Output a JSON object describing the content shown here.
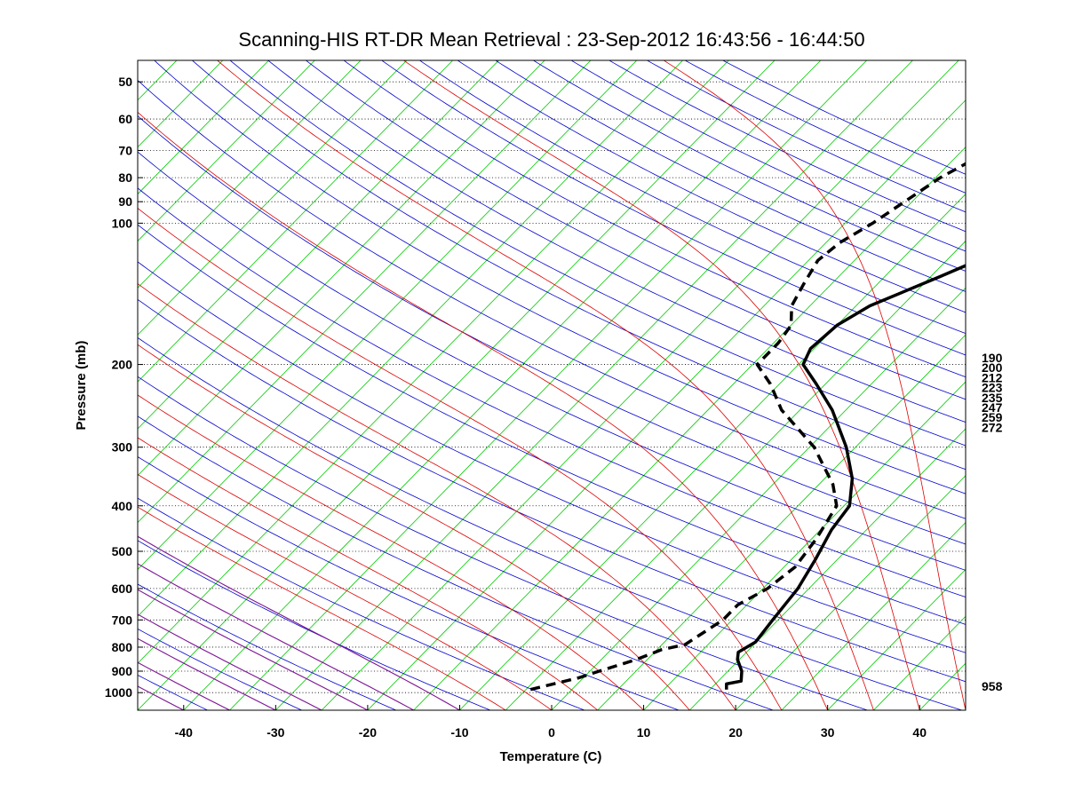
{
  "chart_data": {
    "type": "line",
    "subtype": "skew-T log-P diagram",
    "title": "Scanning-HIS RT-DR Mean Retrieval : 23-Sep-2012 16:43:56 - 16:44:50",
    "xlabel": "Temperature (C)",
    "ylabel": "Pressure (mb)",
    "xlim": [
      -45,
      45
    ],
    "ylim": [
      1090,
      45
    ],
    "x_ticks": [
      -40,
      -30,
      -20,
      -10,
      0,
      10,
      20,
      30,
      40
    ],
    "y_ticks": [
      50,
      60,
      70,
      80,
      90,
      100,
      200,
      300,
      400,
      500,
      600,
      700,
      800,
      900,
      1000
    ],
    "right_labels": [
      "190",
      "200",
      "212",
      "223",
      "235",
      "247",
      "259",
      "272"
    ],
    "surface_label": "958",
    "grid": "dotted horizontal isobars",
    "colors": {
      "isotherm": "#00cc00",
      "dry_adiabat": "#0000cc",
      "moist_adiabat": "#dd0000",
      "purple": "#7d1d9d",
      "profile": "#000000"
    },
    "series": [
      {
        "name": "temperature",
        "style": "solid",
        "points": [
          [
            985,
            16.8
          ],
          [
            958,
            16.2
          ],
          [
            945,
            17.5
          ],
          [
            900,
            16.5
          ],
          [
            850,
            14.8
          ],
          [
            820,
            14.1
          ],
          [
            780,
            14.9
          ],
          [
            700,
            14.4
          ],
          [
            600,
            13.8
          ],
          [
            520,
            12.6
          ],
          [
            450,
            11.2
          ],
          [
            400,
            10.6
          ],
          [
            350,
            8.0
          ],
          [
            300,
            4.0
          ],
          [
            250,
            -1.5
          ],
          [
            220,
            -6.0
          ],
          [
            200,
            -9.5
          ],
          [
            185,
            -10.4
          ],
          [
            165,
            -10.0
          ],
          [
            150,
            -8.5
          ],
          [
            130,
            -4.0
          ],
          [
            110,
            1.0
          ],
          [
            100,
            3.5
          ],
          [
            85,
            8.0
          ],
          [
            75,
            11.5
          ],
          [
            65,
            16.5
          ],
          [
            55,
            21.0
          ],
          [
            48,
            24.5
          ]
        ]
      },
      {
        "name": "dewpoint",
        "style": "dashed",
        "points": [
          [
            985,
            -4.5
          ],
          [
            930,
            -0.5
          ],
          [
            900,
            1.0
          ],
          [
            850,
            3.8
          ],
          [
            810,
            5.5
          ],
          [
            790,
            7.5
          ],
          [
            740,
            8.3
          ],
          [
            700,
            9.0
          ],
          [
            650,
            9.0
          ],
          [
            600,
            10.5
          ],
          [
            540,
            11.2
          ],
          [
            470,
            10.5
          ],
          [
            400,
            9.2
          ],
          [
            360,
            6.5
          ],
          [
            300,
            0.5
          ],
          [
            250,
            -7.0
          ],
          [
            220,
            -11.0
          ],
          [
            200,
            -14.5
          ],
          [
            180,
            -14.5
          ],
          [
            165,
            -15.0
          ],
          [
            150,
            -17.0
          ],
          [
            135,
            -18.0
          ],
          [
            120,
            -19.0
          ],
          [
            110,
            -18.5
          ],
          [
            100,
            -17.0
          ],
          [
            80,
            -14.5
          ],
          [
            70,
            -12.0
          ],
          [
            60,
            -8.5
          ],
          [
            48,
            -3.8
          ]
        ]
      }
    ]
  }
}
